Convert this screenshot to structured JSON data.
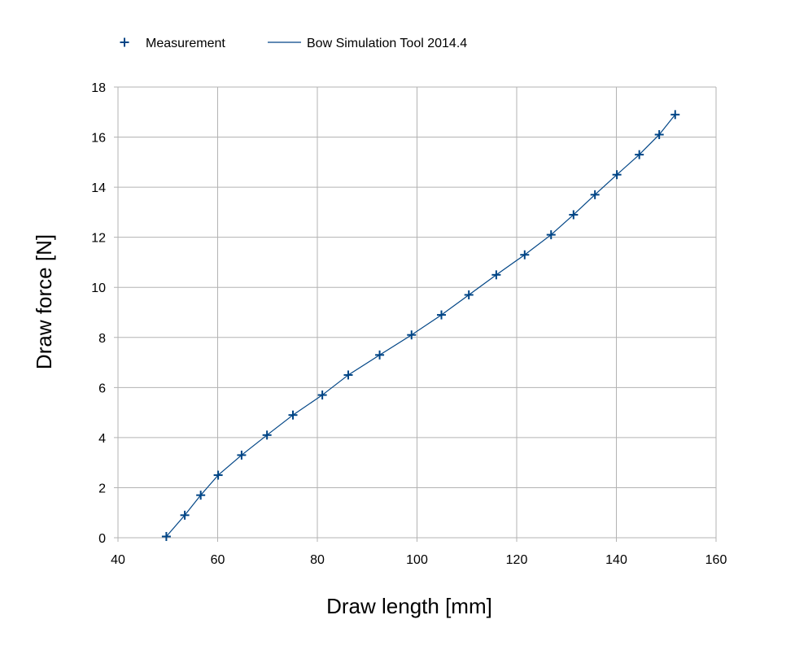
{
  "colors": {
    "series": "#004586",
    "grid": "#b3b3b3",
    "axis": "#b3b3b3",
    "background": "#ffffff"
  },
  "chart_data": {
    "type": "scatter",
    "title": "",
    "xlabel": "Draw length [mm]",
    "ylabel": "Draw force [N]",
    "xlim": [
      40,
      160
    ],
    "ylim": [
      0,
      18
    ],
    "xticks": [
      "40",
      "60",
      "80",
      "100",
      "120",
      "140",
      "160"
    ],
    "yticks": [
      "0",
      "2",
      "4",
      "6",
      "8",
      "10",
      "12",
      "14",
      "16",
      "18"
    ],
    "grid": true,
    "legend_position": "top-left",
    "series": [
      {
        "name": "Measurement",
        "kind": "markers",
        "marker": "plus",
        "x": [
          49.7,
          53.4,
          56.6,
          60.1,
          64.8,
          69.9,
          75.1,
          81.0,
          86.2,
          92.5,
          98.9,
          104.9,
          110.4,
          115.9,
          121.6,
          126.9,
          131.4,
          135.7,
          140.1,
          144.6,
          148.6,
          151.8
        ],
        "y": [
          0.05,
          0.9,
          1.7,
          2.5,
          3.3,
          4.1,
          4.9,
          5.7,
          6.5,
          7.3,
          8.1,
          8.9,
          9.7,
          10.5,
          11.3,
          12.1,
          12.9,
          13.7,
          14.5,
          15.3,
          16.1,
          16.9
        ]
      },
      {
        "name": "Bow Simulation Tool 2014.4",
        "kind": "line",
        "x": [
          49.7,
          53.4,
          56.6,
          60.1,
          64.8,
          69.9,
          75.1,
          81.0,
          86.2,
          92.5,
          98.9,
          104.9,
          110.4,
          115.9,
          121.6,
          126.9,
          131.4,
          135.7,
          140.1,
          144.6,
          148.6,
          151.8
        ],
        "y": [
          0.05,
          0.9,
          1.7,
          2.5,
          3.3,
          4.1,
          4.9,
          5.7,
          6.5,
          7.3,
          8.1,
          8.9,
          9.7,
          10.5,
          11.3,
          12.1,
          12.9,
          13.7,
          14.5,
          15.3,
          16.1,
          16.9
        ]
      }
    ]
  }
}
